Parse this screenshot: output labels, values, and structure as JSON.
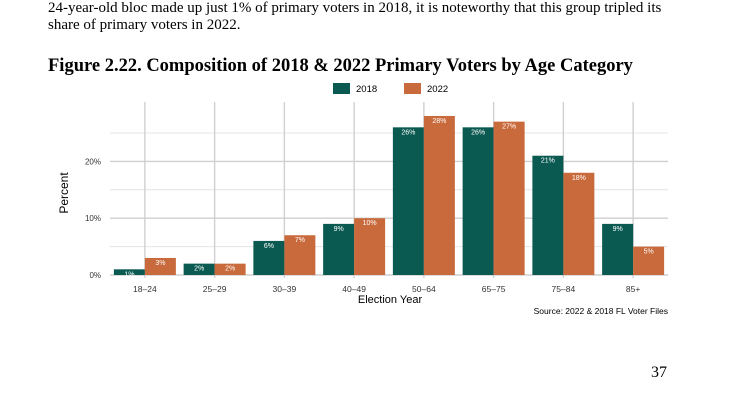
{
  "intro_text": "24-year-old bloc made up just 1% of primary voters in 2018, it is noteworthy that this group tripled its share of primary voters in 2022.",
  "figure_title": "Figure 2.22. Composition of 2018 & 2022 Primary Voters by Age Category",
  "page_number": "37",
  "colors": {
    "series_2018": "#0b5a52",
    "series_2022": "#c96a3c",
    "label_text": "#ffffff"
  },
  "chart_data": {
    "type": "bar",
    "categories": [
      "18–24",
      "25–29",
      "30–39",
      "40–49",
      "50–64",
      "65–75",
      "75–84",
      "85+"
    ],
    "series": [
      {
        "name": "2018",
        "values": [
          1,
          2,
          6,
          9,
          26,
          26,
          21,
          9
        ],
        "labels": [
          "1%",
          "2%",
          "6%",
          "9%",
          "26%",
          "26%",
          "21%",
          "9%"
        ]
      },
      {
        "name": "2022",
        "values": [
          3,
          2,
          7,
          10,
          28,
          27,
          18,
          5
        ],
        "labels": [
          "3%",
          "2%",
          "7%",
          "10%",
          "28%",
          "27%",
          "18%",
          "5%"
        ]
      }
    ],
    "xlabel": "Election Year",
    "ylabel": "Percent",
    "ylim": [
      0,
      30
    ],
    "yticks": [
      0,
      10,
      20
    ],
    "ytick_labels": [
      "0%",
      "10%",
      "20%"
    ],
    "legend_position": "top-center",
    "grid": true,
    "source": "Source: 2022 & 2018 FL Voter Files"
  }
}
